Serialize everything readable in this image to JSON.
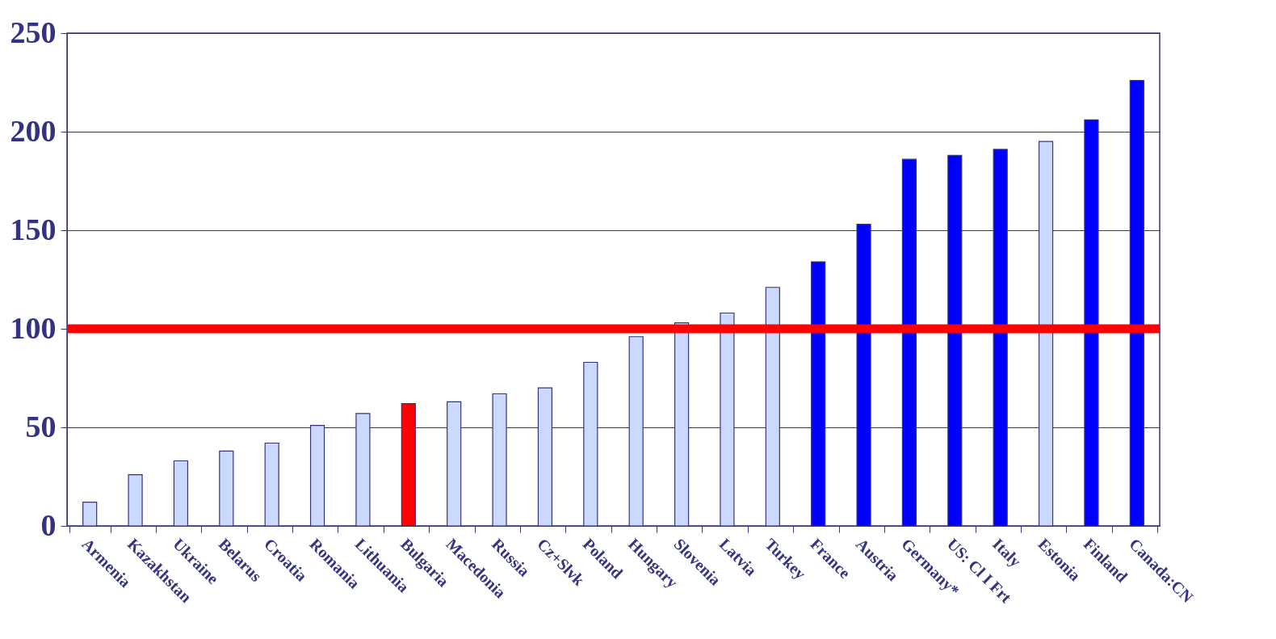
{
  "chart_data": {
    "type": "bar",
    "categories": [
      "Armenia",
      "Kazakhstan",
      "Ukraine",
      "Belarus",
      "Croatia",
      "Romania",
      "Lithuania",
      "Bulgaria",
      "Macedonia",
      "Russia",
      "Cz+Slvk",
      "Poland",
      "Hungary",
      "Slovenia",
      "Latvia",
      "Turkey",
      "France",
      "Austria",
      "Germany*",
      "US:  Cl I Frt",
      "Italy",
      "Estonia",
      "Finland",
      "Canada:CN"
    ],
    "values": [
      12,
      26,
      33,
      38,
      42,
      51,
      57,
      62,
      63,
      67,
      70,
      83,
      96,
      103,
      108,
      121,
      134,
      153,
      186,
      188,
      191,
      195,
      206,
      226
    ],
    "colors": [
      "#ccd9ff",
      "#ccd9ff",
      "#ccd9ff",
      "#ccd9ff",
      "#ccd9ff",
      "#ccd9ff",
      "#ccd9ff",
      "#ff0000",
      "#ccd9ff",
      "#ccd9ff",
      "#ccd9ff",
      "#ccd9ff",
      "#ccd9ff",
      "#ccd9ff",
      "#ccd9ff",
      "#ccd9ff",
      "#0000ff",
      "#0000ff",
      "#0000ff",
      "#0000ff",
      "#0000ff",
      "#ccd9ff",
      "#0000ff",
      "#0000ff"
    ],
    "ylim": [
      0,
      250
    ],
    "yticks": [
      0,
      50,
      100,
      150,
      200,
      250
    ],
    "grid": "y",
    "ref_lines": [
      {
        "axis": "y",
        "value": 100,
        "color": "#ff0000"
      }
    ]
  }
}
